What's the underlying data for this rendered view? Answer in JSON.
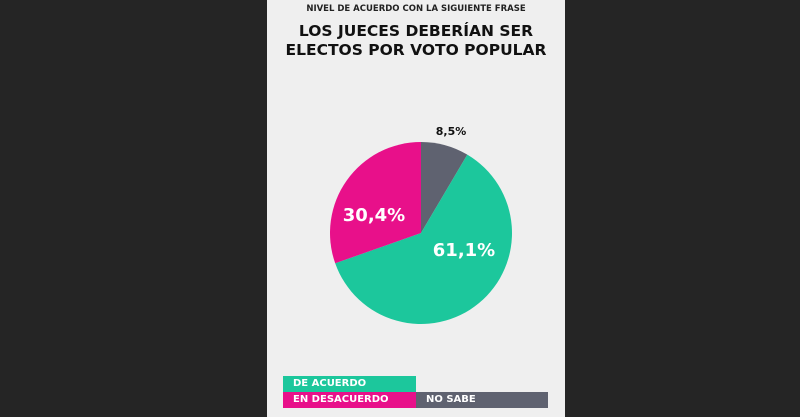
{
  "header": {
    "subtitle": "NIVEL DE ACUERDO CON LA SIGUIENTE FRASE",
    "title_line1": "LOS JUECES DEBERÍAN SER",
    "title_line2": "ELECTOS POR VOTO POPULAR"
  },
  "chart_data": {
    "type": "pie",
    "title": "LOS JUECES DEBERÍAN SER ELECTOS POR VOTO POPULAR",
    "slices": [
      {
        "name": "NO SABE",
        "value": 8.5,
        "label": "8,5%",
        "color": "#5f6270"
      },
      {
        "name": "DE ACUERDO",
        "value": 61.1,
        "label": "61,1%",
        "color": "#1cc79c"
      },
      {
        "name": "EN DESACUERDO",
        "value": 30.4,
        "label": "30,4%",
        "color": "#e8108a"
      }
    ],
    "legend": "bottom"
  },
  "legend": {
    "agree": "DE ACUERDO",
    "disagree": "EN DESACUERDO",
    "unknown": "NO SABE"
  }
}
